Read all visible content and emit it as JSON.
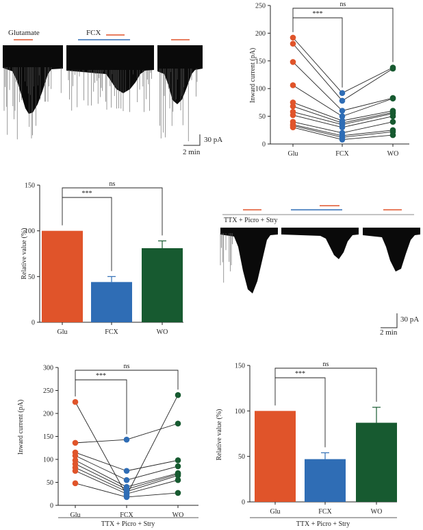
{
  "colors": {
    "glu": "#e0542a",
    "fcx": "#2f6db5",
    "wo": "#175a30",
    "line": "#222222",
    "trace": "#0a0a0a"
  },
  "trace_top": {
    "glutamate_label": "Glutamate",
    "fcx_label": "FCX",
    "scale_y_label": "30 pA",
    "scale_x_label": "2 min"
  },
  "trace_ttx": {
    "condition_label": "TTX + Picro + Stry",
    "scale_y_label": "30 pA",
    "scale_x_label": "2 min"
  },
  "chart_data": [
    {
      "id": "inward-scatter-top",
      "type": "scatter",
      "ylabel": "Inward current (pA)",
      "xlabel": "",
      "ylim": [
        0,
        250
      ],
      "yticks": [
        0,
        50,
        100,
        150,
        200,
        250
      ],
      "categories": [
        "Glu",
        "FCX",
        "WO"
      ],
      "paired_points": [
        [
          192,
          92,
          138
        ],
        [
          181,
          78,
          136
        ],
        [
          148,
          60,
          83
        ],
        [
          106,
          50,
          82
        ],
        [
          75,
          42,
          60
        ],
        [
          68,
          38,
          57
        ],
        [
          58,
          35,
          55
        ],
        [
          52,
          30,
          50
        ],
        [
          40,
          20,
          40
        ],
        [
          35,
          15,
          25
        ],
        [
          33,
          12,
          22
        ],
        [
          30,
          8,
          16
        ]
      ],
      "significance": [
        {
          "label": "***",
          "from": "Glu",
          "to": "FCX"
        },
        {
          "label": "ns",
          "from": "Glu",
          "to": "WO"
        }
      ]
    },
    {
      "id": "relative-bar-top",
      "type": "bar",
      "ylabel": "Relative value (%)",
      "xlabel": "",
      "ylim": [
        0,
        150
      ],
      "yticks": [
        0,
        50,
        100,
        150
      ],
      "categories": [
        "Glu",
        "FCX",
        "WO"
      ],
      "values": [
        100,
        44,
        81
      ],
      "errors": [
        0,
        6,
        8
      ],
      "significance": [
        {
          "label": "***",
          "from": "Glu",
          "to": "FCX"
        },
        {
          "label": "ns",
          "from": "Glu",
          "to": "WO"
        }
      ]
    },
    {
      "id": "inward-scatter-ttx",
      "type": "scatter",
      "ylabel": "Inward current (pA)",
      "xlabel": "TTX + Picro + Stry",
      "ylim": [
        0,
        300
      ],
      "yticks": [
        0,
        50,
        100,
        150,
        200,
        250,
        300
      ],
      "categories": [
        "Glu",
        "FCX",
        "WO"
      ],
      "paired_points": [
        [
          225,
          22,
          240
        ],
        [
          136,
          143,
          178
        ],
        [
          115,
          75,
          98
        ],
        [
          108,
          55,
          85
        ],
        [
          98,
          40,
          70
        ],
        [
          90,
          35,
          68
        ],
        [
          82,
          30,
          65
        ],
        [
          75,
          25,
          55
        ],
        [
          48,
          18,
          27
        ]
      ],
      "significance": [
        {
          "label": "***",
          "from": "Glu",
          "to": "FCX"
        },
        {
          "label": "ns",
          "from": "Glu",
          "to": "WO"
        }
      ]
    },
    {
      "id": "relative-bar-ttx",
      "type": "bar",
      "ylabel": "Relative value (%)",
      "xlabel": "TTX + Picro + Stry",
      "ylim": [
        0,
        150
      ],
      "yticks": [
        0,
        50,
        100,
        150
      ],
      "categories": [
        "Glu",
        "FCX",
        "WO"
      ],
      "values": [
        100,
        47,
        87
      ],
      "errors": [
        0,
        7,
        17
      ],
      "significance": [
        {
          "label": "***",
          "from": "Glu",
          "to": "FCX"
        },
        {
          "label": "ns",
          "from": "Glu",
          "to": "WO"
        }
      ]
    }
  ]
}
